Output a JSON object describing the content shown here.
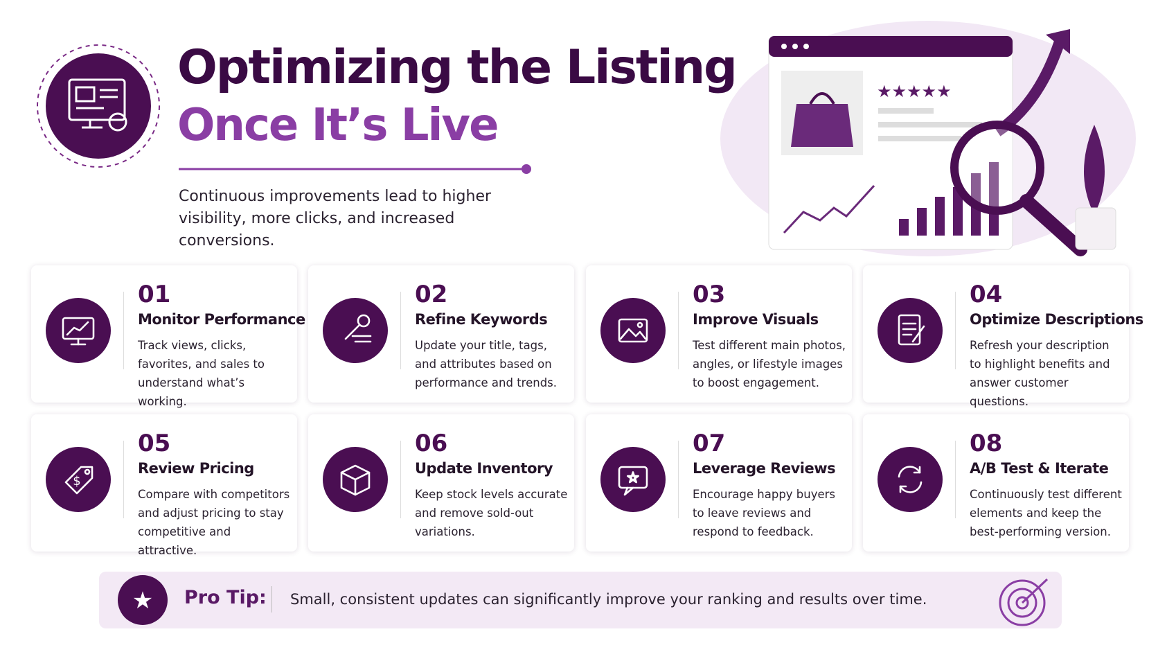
{
  "header": {
    "title_line1": "Optimizing the Listing",
    "title_line2": "Once It’s Live",
    "subtitle": "Continuous improvements lead to higher visibility, more clicks, and increased conversions."
  },
  "cards": [
    {
      "number": "01",
      "title": "Monitor Performance",
      "description": "Track views, clicks, favorites, and sales to understand what’s working."
    },
    {
      "number": "02",
      "title": "Refine Keywords",
      "description": "Update your title, tags, and attributes based on performance and trends."
    },
    {
      "number": "03",
      "title": "Improve Visuals",
      "description": "Test different main photos, angles, or lifestyle images to boost engagement."
    },
    {
      "number": "04",
      "title": "Optimize Descriptions",
      "description": "Refresh your description to highlight benefits and answer customer questions."
    },
    {
      "number": "05",
      "title": "Review Pricing",
      "description": "Compare with competitors and adjust pricing to stay competitive and attractive."
    },
    {
      "number": "06",
      "title": "Update Inventory",
      "description": "Keep stock levels accurate and remove sold-out variations."
    },
    {
      "number": "07",
      "title": "Leverage Reviews",
      "description": "Encourage happy buyers to leave reviews and respond to feedback."
    },
    {
      "number": "08",
      "title": "A/B Test & Iterate",
      "description": "Continuously test different elements and keep the best-performing version."
    }
  ],
  "pro_tip": {
    "label": "Pro Tip:",
    "text": "Small, consistent updates can significantly improve your ranking and results over time."
  }
}
